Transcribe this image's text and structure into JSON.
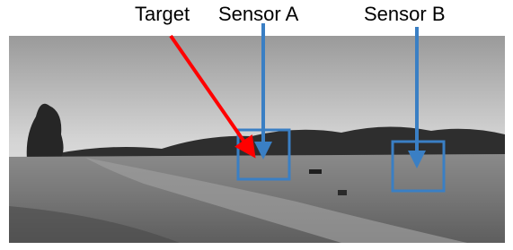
{
  "labels": {
    "target": "Target",
    "sensor_a": "Sensor A",
    "sensor_b": "Sensor B"
  }
}
